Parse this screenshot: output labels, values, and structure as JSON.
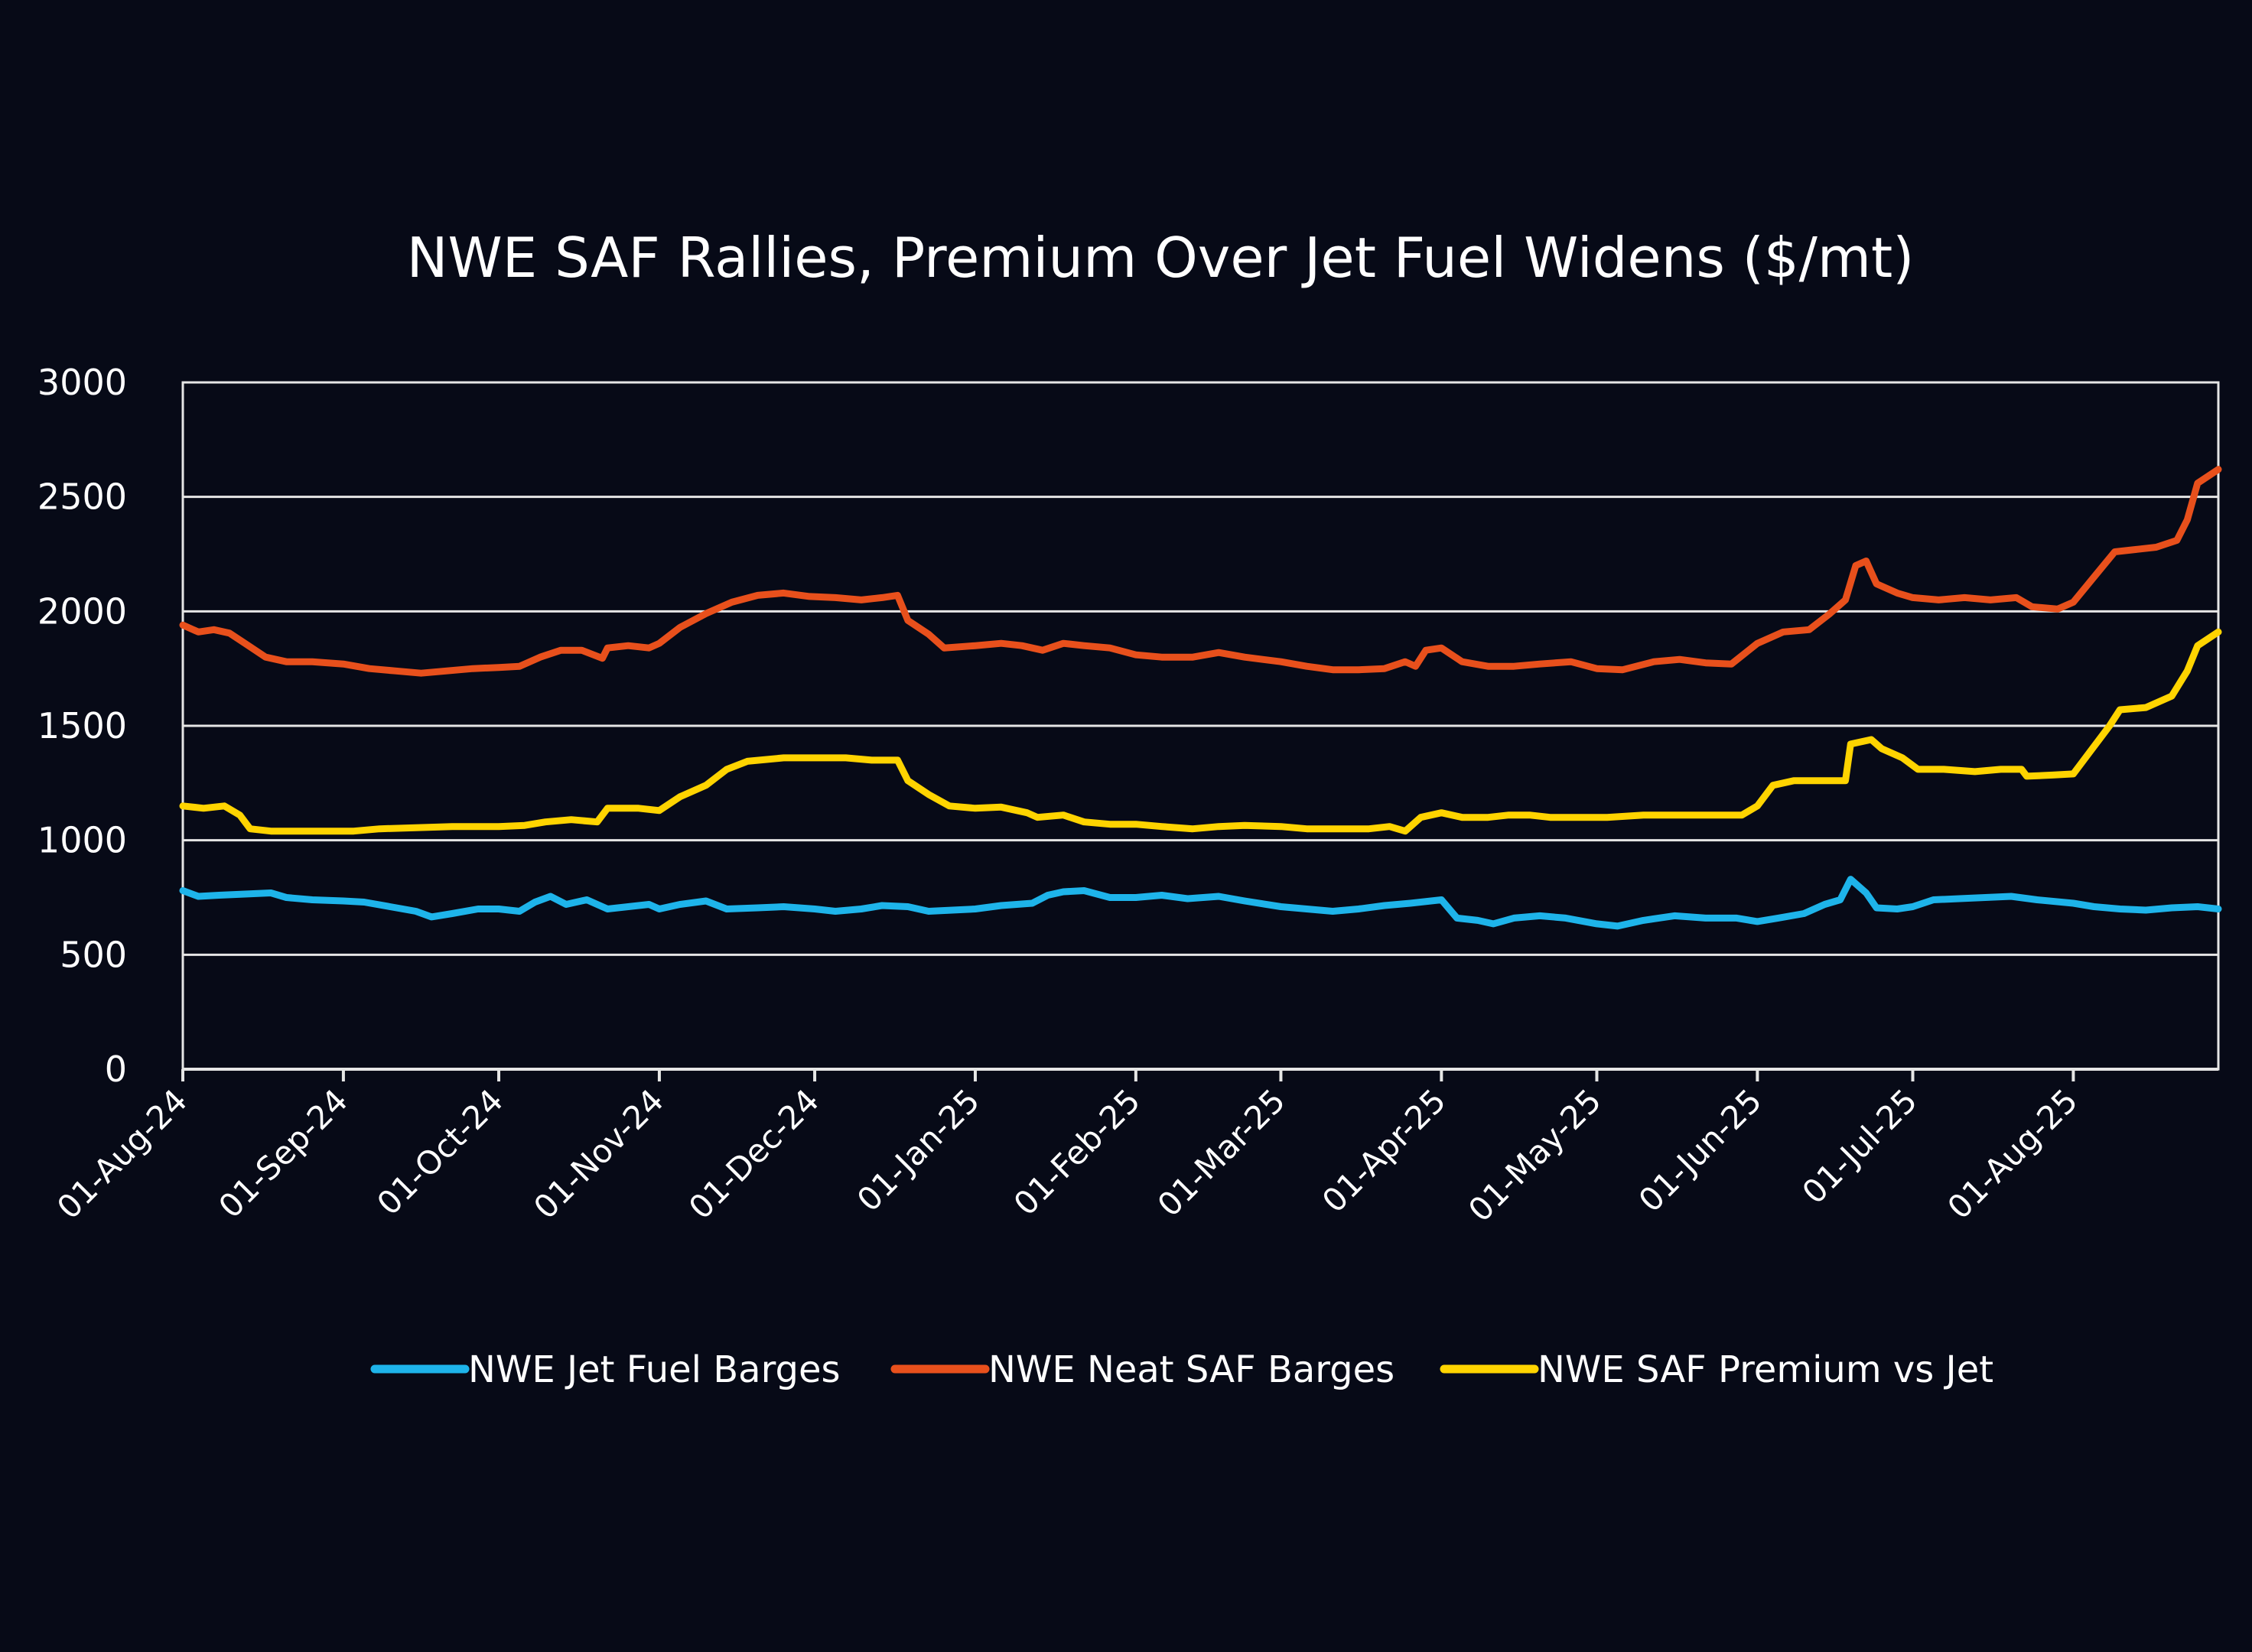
{
  "chart_data": {
    "type": "line",
    "title": "NWE SAF Rallies, Premium Over Jet Fuel Widens ($/mt)",
    "xlabel": "",
    "ylabel": "",
    "ylim": [
      0,
      3000
    ],
    "yticks": [
      "0",
      "500",
      "1000",
      "1500",
      "2000",
      "2500",
      "3000"
    ],
    "x_tick_labels": [
      "01-Aug-24",
      "01-Sep-24",
      "01-Oct-24",
      "01-Nov-24",
      "01-Dec-24",
      "01-Jan-25",
      "01-Feb-25",
      "01-Mar-25",
      "01-Apr-25",
      "01-May-25",
      "01-Jun-25",
      "01-Jul-25",
      "01-Aug-25"
    ],
    "x_range": [
      "2024-08-01",
      "2025-08-29"
    ],
    "grid": true,
    "legend_position": "bottom",
    "series": [
      {
        "name": "NWE Jet Fuel Barges",
        "color": "#1eb4ea",
        "points": [
          [
            "2024-08-01",
            780
          ],
          [
            "2024-08-04",
            755
          ],
          [
            "2024-08-08",
            760
          ],
          [
            "2024-08-13",
            765
          ],
          [
            "2024-08-18",
            770
          ],
          [
            "2024-08-21",
            750
          ],
          [
            "2024-08-26",
            740
          ],
          [
            "2024-09-01",
            735
          ],
          [
            "2024-09-05",
            730
          ],
          [
            "2024-09-10",
            710
          ],
          [
            "2024-09-15",
            690
          ],
          [
            "2024-09-18",
            665
          ],
          [
            "2024-09-22",
            680
          ],
          [
            "2024-09-27",
            700
          ],
          [
            "2024-10-01",
            700
          ],
          [
            "2024-10-05",
            690
          ],
          [
            "2024-10-08",
            730
          ],
          [
            "2024-10-11",
            755
          ],
          [
            "2024-10-14",
            720
          ],
          [
            "2024-10-18",
            740
          ],
          [
            "2024-10-22",
            700
          ],
          [
            "2024-10-26",
            710
          ],
          [
            "2024-10-30",
            720
          ],
          [
            "2024-11-01",
            700
          ],
          [
            "2024-11-05",
            720
          ],
          [
            "2024-11-10",
            735
          ],
          [
            "2024-11-14",
            700
          ],
          [
            "2024-11-20",
            705
          ],
          [
            "2024-11-25",
            710
          ],
          [
            "2024-12-01",
            700
          ],
          [
            "2024-12-05",
            690
          ],
          [
            "2024-12-10",
            700
          ],
          [
            "2024-12-14",
            715
          ],
          [
            "2024-12-19",
            710
          ],
          [
            "2024-12-23",
            690
          ],
          [
            "2025-01-01",
            700
          ],
          [
            "2025-01-06",
            715
          ],
          [
            "2025-01-12",
            725
          ],
          [
            "2025-01-15",
            760
          ],
          [
            "2025-01-18",
            775
          ],
          [
            "2025-01-22",
            780
          ],
          [
            "2025-01-27",
            750
          ],
          [
            "2025-02-01",
            750
          ],
          [
            "2025-02-06",
            760
          ],
          [
            "2025-02-11",
            745
          ],
          [
            "2025-02-17",
            755
          ],
          [
            "2025-02-22",
            735
          ],
          [
            "2025-03-01",
            710
          ],
          [
            "2025-03-06",
            700
          ],
          [
            "2025-03-11",
            690
          ],
          [
            "2025-03-16",
            700
          ],
          [
            "2025-03-21",
            715
          ],
          [
            "2025-03-26",
            725
          ],
          [
            "2025-04-01",
            740
          ],
          [
            "2025-04-04",
            660
          ],
          [
            "2025-04-08",
            650
          ],
          [
            "2025-04-11",
            635
          ],
          [
            "2025-04-15",
            660
          ],
          [
            "2025-04-20",
            670
          ],
          [
            "2025-04-25",
            660
          ],
          [
            "2025-05-01",
            635
          ],
          [
            "2025-05-05",
            625
          ],
          [
            "2025-05-10",
            650
          ],
          [
            "2025-05-16",
            670
          ],
          [
            "2025-05-22",
            660
          ],
          [
            "2025-05-28",
            660
          ],
          [
            "2025-06-01",
            645
          ],
          [
            "2025-06-05",
            660
          ],
          [
            "2025-06-10",
            680
          ],
          [
            "2025-06-14",
            720
          ],
          [
            "2025-06-17",
            740
          ],
          [
            "2025-06-19",
            830
          ],
          [
            "2025-06-22",
            770
          ],
          [
            "2025-06-24",
            705
          ],
          [
            "2025-06-28",
            700
          ],
          [
            "2025-07-01",
            710
          ],
          [
            "2025-07-05",
            740
          ],
          [
            "2025-07-10",
            745
          ],
          [
            "2025-07-15",
            750
          ],
          [
            "2025-07-20",
            755
          ],
          [
            "2025-07-25",
            740
          ],
          [
            "2025-08-01",
            725
          ],
          [
            "2025-08-05",
            710
          ],
          [
            "2025-08-10",
            700
          ],
          [
            "2025-08-15",
            695
          ],
          [
            "2025-08-20",
            705
          ],
          [
            "2025-08-25",
            710
          ],
          [
            "2025-08-29",
            700
          ]
        ]
      },
      {
        "name": "NWE Neat SAF Barges",
        "color": "#e8501c",
        "points": [
          [
            "2024-08-01",
            1940
          ],
          [
            "2024-08-04",
            1910
          ],
          [
            "2024-08-07",
            1920
          ],
          [
            "2024-08-10",
            1905
          ],
          [
            "2024-08-13",
            1860
          ],
          [
            "2024-08-17",
            1800
          ],
          [
            "2024-08-21",
            1780
          ],
          [
            "2024-08-26",
            1780
          ],
          [
            "2024-09-01",
            1770
          ],
          [
            "2024-09-06",
            1750
          ],
          [
            "2024-09-11",
            1740
          ],
          [
            "2024-09-16",
            1730
          ],
          [
            "2024-09-21",
            1740
          ],
          [
            "2024-09-26",
            1750
          ],
          [
            "2024-10-01",
            1755
          ],
          [
            "2024-10-05",
            1760
          ],
          [
            "2024-10-09",
            1800
          ],
          [
            "2024-10-13",
            1830
          ],
          [
            "2024-10-17",
            1830
          ],
          [
            "2024-10-21",
            1795
          ],
          [
            "2024-10-22",
            1840
          ],
          [
            "2024-10-26",
            1850
          ],
          [
            "2024-10-30",
            1840
          ],
          [
            "2024-11-01",
            1860
          ],
          [
            "2024-11-05",
            1930
          ],
          [
            "2024-11-10",
            1990
          ],
          [
            "2024-11-15",
            2040
          ],
          [
            "2024-11-20",
            2070
          ],
          [
            "2024-11-25",
            2080
          ],
          [
            "2024-11-30",
            2065
          ],
          [
            "2024-12-05",
            2060
          ],
          [
            "2024-12-10",
            2050
          ],
          [
            "2024-12-14",
            2060
          ],
          [
            "2024-12-17",
            2070
          ],
          [
            "2024-12-19",
            1960
          ],
          [
            "2024-12-23",
            1900
          ],
          [
            "2024-12-26",
            1840
          ],
          [
            "2025-01-01",
            1850
          ],
          [
            "2025-01-06",
            1860
          ],
          [
            "2025-01-10",
            1850
          ],
          [
            "2025-01-14",
            1830
          ],
          [
            "2025-01-18",
            1860
          ],
          [
            "2025-01-22",
            1850
          ],
          [
            "2025-01-27",
            1840
          ],
          [
            "2025-02-01",
            1810
          ],
          [
            "2025-02-06",
            1800
          ],
          [
            "2025-02-12",
            1800
          ],
          [
            "2025-02-17",
            1820
          ],
          [
            "2025-02-22",
            1800
          ],
          [
            "2025-03-01",
            1780
          ],
          [
            "2025-03-06",
            1760
          ],
          [
            "2025-03-11",
            1745
          ],
          [
            "2025-03-16",
            1745
          ],
          [
            "2025-03-21",
            1750
          ],
          [
            "2025-03-25",
            1780
          ],
          [
            "2025-03-27",
            1760
          ],
          [
            "2025-03-29",
            1830
          ],
          [
            "2025-04-01",
            1840
          ],
          [
            "2025-04-05",
            1780
          ],
          [
            "2025-04-10",
            1760
          ],
          [
            "2025-04-15",
            1760
          ],
          [
            "2025-04-20",
            1770
          ],
          [
            "2025-04-26",
            1780
          ],
          [
            "2025-05-01",
            1750
          ],
          [
            "2025-05-06",
            1745
          ],
          [
            "2025-05-12",
            1780
          ],
          [
            "2025-05-17",
            1790
          ],
          [
            "2025-05-22",
            1775
          ],
          [
            "2025-05-27",
            1770
          ],
          [
            "2025-06-01",
            1860
          ],
          [
            "2025-06-06",
            1910
          ],
          [
            "2025-06-11",
            1920
          ],
          [
            "2025-06-15",
            1990
          ],
          [
            "2025-06-18",
            2050
          ],
          [
            "2025-06-20",
            2200
          ],
          [
            "2025-06-22",
            2220
          ],
          [
            "2025-06-24",
            2120
          ],
          [
            "2025-06-28",
            2080
          ],
          [
            "2025-07-01",
            2060
          ],
          [
            "2025-07-06",
            2050
          ],
          [
            "2025-07-11",
            2060
          ],
          [
            "2025-07-16",
            2050
          ],
          [
            "2025-07-21",
            2060
          ],
          [
            "2025-07-24",
            2020
          ],
          [
            "2025-07-29",
            2010
          ],
          [
            "2025-08-01",
            2040
          ],
          [
            "2025-08-05",
            2150
          ],
          [
            "2025-08-09",
            2260
          ],
          [
            "2025-08-13",
            2270
          ],
          [
            "2025-08-17",
            2280
          ],
          [
            "2025-08-21",
            2310
          ],
          [
            "2025-08-23",
            2400
          ],
          [
            "2025-08-25",
            2560
          ],
          [
            "2025-08-29",
            2620
          ]
        ]
      },
      {
        "name": "NWE SAF Premium vs Jet",
        "color": "#ffd400",
        "points": [
          [
            "2024-08-01",
            1150
          ],
          [
            "2024-08-05",
            1140
          ],
          [
            "2024-08-09",
            1150
          ],
          [
            "2024-08-12",
            1110
          ],
          [
            "2024-08-14",
            1050
          ],
          [
            "2024-08-18",
            1040
          ],
          [
            "2024-08-24",
            1040
          ],
          [
            "2024-08-30",
            1040
          ],
          [
            "2024-09-03",
            1040
          ],
          [
            "2024-09-08",
            1050
          ],
          [
            "2024-09-15",
            1055
          ],
          [
            "2024-09-22",
            1060
          ],
          [
            "2024-10-01",
            1060
          ],
          [
            "2024-10-06",
            1065
          ],
          [
            "2024-10-10",
            1080
          ],
          [
            "2024-10-15",
            1090
          ],
          [
            "2024-10-20",
            1080
          ],
          [
            "2024-10-22",
            1140
          ],
          [
            "2024-10-28",
            1140
          ],
          [
            "2024-11-01",
            1130
          ],
          [
            "2024-11-05",
            1190
          ],
          [
            "2024-11-10",
            1240
          ],
          [
            "2024-11-14",
            1310
          ],
          [
            "2024-11-18",
            1345
          ],
          [
            "2024-11-25",
            1360
          ],
          [
            "2024-12-01",
            1360
          ],
          [
            "2024-12-07",
            1360
          ],
          [
            "2024-12-12",
            1350
          ],
          [
            "2024-12-17",
            1350
          ],
          [
            "2024-12-19",
            1260
          ],
          [
            "2024-12-23",
            1200
          ],
          [
            "2024-12-27",
            1150
          ],
          [
            "2025-01-01",
            1140
          ],
          [
            "2025-01-06",
            1145
          ],
          [
            "2025-01-11",
            1120
          ],
          [
            "2025-01-13",
            1100
          ],
          [
            "2025-01-18",
            1110
          ],
          [
            "2025-01-22",
            1080
          ],
          [
            "2025-01-27",
            1070
          ],
          [
            "2025-02-01",
            1070
          ],
          [
            "2025-02-06",
            1060
          ],
          [
            "2025-02-12",
            1050
          ],
          [
            "2025-02-17",
            1060
          ],
          [
            "2025-02-22",
            1065
          ],
          [
            "2025-03-01",
            1060
          ],
          [
            "2025-03-06",
            1050
          ],
          [
            "2025-03-12",
            1050
          ],
          [
            "2025-03-18",
            1050
          ],
          [
            "2025-03-22",
            1060
          ],
          [
            "2025-03-25",
            1040
          ],
          [
            "2025-03-28",
            1100
          ],
          [
            "2025-04-01",
            1120
          ],
          [
            "2025-04-05",
            1100
          ],
          [
            "2025-04-10",
            1100
          ],
          [
            "2025-04-14",
            1110
          ],
          [
            "2025-04-18",
            1110
          ],
          [
            "2025-04-22",
            1100
          ],
          [
            "2025-04-28",
            1100
          ],
          [
            "2025-05-03",
            1100
          ],
          [
            "2025-05-10",
            1110
          ],
          [
            "2025-05-17",
            1110
          ],
          [
            "2025-05-24",
            1110
          ],
          [
            "2025-05-29",
            1110
          ],
          [
            "2025-06-01",
            1150
          ],
          [
            "2025-06-04",
            1240
          ],
          [
            "2025-06-08",
            1260
          ],
          [
            "2025-06-13",
            1260
          ],
          [
            "2025-06-18",
            1260
          ],
          [
            "2025-06-19",
            1420
          ],
          [
            "2025-06-23",
            1440
          ],
          [
            "2025-06-25",
            1400
          ],
          [
            "2025-06-29",
            1360
          ],
          [
            "2025-07-02",
            1310
          ],
          [
            "2025-07-07",
            1310
          ],
          [
            "2025-07-13",
            1300
          ],
          [
            "2025-07-18",
            1310
          ],
          [
            "2025-07-22",
            1310
          ],
          [
            "2025-07-23",
            1280
          ],
          [
            "2025-07-28",
            1285
          ],
          [
            "2025-08-01",
            1290
          ],
          [
            "2025-08-04",
            1380
          ],
          [
            "2025-08-08",
            1500
          ],
          [
            "2025-08-10",
            1570
          ],
          [
            "2025-08-15",
            1580
          ],
          [
            "2025-08-20",
            1630
          ],
          [
            "2025-08-23",
            1740
          ],
          [
            "2025-08-25",
            1850
          ],
          [
            "2025-08-29",
            1910
          ]
        ]
      }
    ]
  }
}
